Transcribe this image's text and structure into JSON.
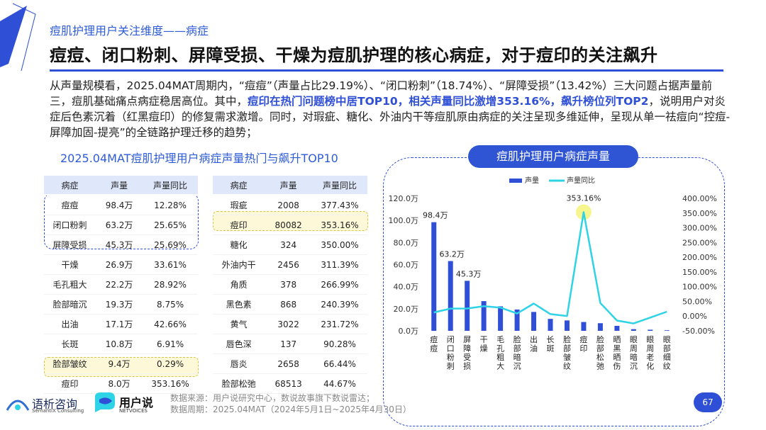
{
  "subtitle": "痘肌护理用户关注维度——病症",
  "headline": "痘痘、闭口粉刺、屏障受损、干燥为痘肌护理的核心病症，对于痘印的关注飙升",
  "para": {
    "p1": "从声量规模看，2025.04MAT周期内，“痘痘”（声量占比29.19%）、“闭口粉刺”（18.74%）、“屏障受损”（13.42%）三大问题占据声量前三，痘肌基础痛点病症稳居高位。其中，",
    "hl": "痘印在热门问题榜中居TOP10，相关声量同比激增353.16%，飙升榜位列TOP2",
    "p2": "，说明用户对炎症后色素沉着（红黑痘印）的修复需求激增。同时，对瑕疵、糖化、外油内干等痘肌原由病症的关注呈现多维延伸，呈现从单一祛痘向“控痘-屏障加固-提亮”的全链路护理迁移的趋势；"
  },
  "tables_title": "2025.04MAT痘肌护理用户病症声量热门与飙升TOP10",
  "table_headers": [
    "病症",
    "声量",
    "声量同比"
  ],
  "hot_table": [
    [
      "痘痘",
      "98.4万",
      "12.28%"
    ],
    [
      "闭口粉刺",
      "63.2万",
      "25.65%"
    ],
    [
      "屏障受损",
      "45.3万",
      "25.69%"
    ],
    [
      "干燥",
      "26.9万",
      "33.61%"
    ],
    [
      "毛孔粗大",
      "22.2万",
      "28.92%"
    ],
    [
      "脸部暗沉",
      "19.3万",
      "8.75%"
    ],
    [
      "出油",
      "17.1万",
      "42.66%"
    ],
    [
      "长斑",
      "10.8万",
      "6.91%"
    ],
    [
      "脸部皱纹",
      "9.4万",
      "0.29%"
    ],
    [
      "痘印",
      "8.0万",
      "353.16%"
    ]
  ],
  "rise_table": [
    [
      "瑕疵",
      "2008",
      "377.43%"
    ],
    [
      "痘印",
      "80082",
      "353.16%"
    ],
    [
      "糖化",
      "324",
      "350.00%"
    ],
    [
      "外油内干",
      "2456",
      "311.39%"
    ],
    [
      "角质",
      "378",
      "266.99%"
    ],
    [
      "黑色素",
      "868",
      "240.39%"
    ],
    [
      "黄气",
      "3022",
      "231.72%"
    ],
    [
      "唇色深",
      "137",
      "90.28%"
    ],
    [
      "唇炎",
      "2658",
      "66.44%"
    ],
    [
      "脸部松弛",
      "68513",
      "44.67%"
    ]
  ],
  "panel_title": "痘肌护理用户病症声量",
  "chart_data": {
    "type": "bar",
    "categories": [
      "痘痘",
      "闭口粉刺",
      "屏障受损",
      "干燥",
      "毛孔粗大",
      "脸部暗沉",
      "出油",
      "长斑",
      "脸部皱纹",
      "痘印",
      "脸部松弛",
      "晒黑晒伤",
      "眼周暗沉",
      "眼周老化",
      "眼部细纹"
    ],
    "series": [
      {
        "name": "声量",
        "type": "bar",
        "axis": "left",
        "color": "#2f4fd6",
        "values": [
          98.4,
          63.2,
          45.3,
          26.9,
          22.2,
          19.3,
          17.1,
          10.8,
          9.4,
          8.0,
          6.9,
          4.5,
          1.5,
          1.0,
          0.5
        ]
      },
      {
        "name": "声量同比",
        "type": "line",
        "axis": "right",
        "color": "#2ed3e6",
        "values": [
          12.28,
          25.65,
          25.69,
          33.61,
          28.92,
          8.75,
          42.66,
          6.91,
          0.29,
          353.16,
          44.67,
          -15.0,
          -25.0,
          -5.0,
          15.0
        ]
      }
    ],
    "bar_labels": [
      {
        "index": 0,
        "text": "98.4万"
      },
      {
        "index": 1,
        "text": "63.2万"
      },
      {
        "index": 2,
        "text": "45.3万"
      }
    ],
    "line_labels": [
      {
        "index": 9,
        "text": "353.16%"
      }
    ],
    "y_left": {
      "min": 0,
      "max": 120,
      "ticks": [
        "0.0万",
        "20.0万",
        "40.0万",
        "60.0万",
        "80.0万",
        "100.0万",
        "120.0万"
      ]
    },
    "y_right": {
      "min": -50,
      "max": 400,
      "ticks": [
        "-50.00%",
        "0.00%",
        "50.00%",
        "100.00%",
        "150.00%",
        "200.00%",
        "250.00%",
        "300.00%",
        "350.00%",
        "400.00%"
      ]
    },
    "legend_position": "top"
  },
  "footer": {
    "line1": "数据来源：用户说研究中心，数说故事旗下数说雷达；",
    "line2": "数据周期：2025.04MAT（2024年5月1日~2025年4月30日）"
  },
  "page_number": "67",
  "logo1": {
    "name": "语析咨询",
    "sub": "SemantiX Consulting"
  },
  "logo2": {
    "name": "用户说",
    "sub": "NETVOICES"
  },
  "colors": {
    "accent": "#2f4fd6",
    "line": "#2ed3e6",
    "highlight_fill": "#fdf9d8"
  }
}
